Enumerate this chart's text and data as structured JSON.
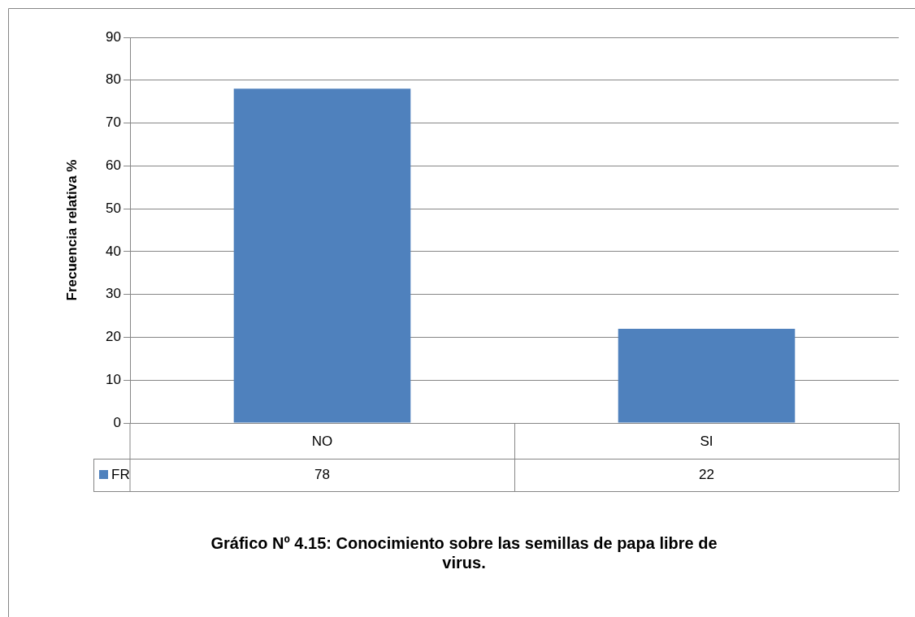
{
  "chart_data": {
    "type": "bar",
    "title": "Gráfico Nº 4.15: Conocimiento sobre las semillas de papa libre de virus.",
    "ylabel": "Frecuencia relativa %",
    "categories": [
      "NO",
      "SI"
    ],
    "series": [
      {
        "name": "FR",
        "color": "#4f81bd",
        "values": [
          78,
          22
        ]
      }
    ],
    "ylim": [
      0,
      90
    ],
    "yticks": [
      0,
      10,
      20,
      30,
      40,
      50,
      60,
      70,
      80,
      90
    ],
    "grid": "y",
    "legend": "bottom left",
    "data_labels": true
  }
}
